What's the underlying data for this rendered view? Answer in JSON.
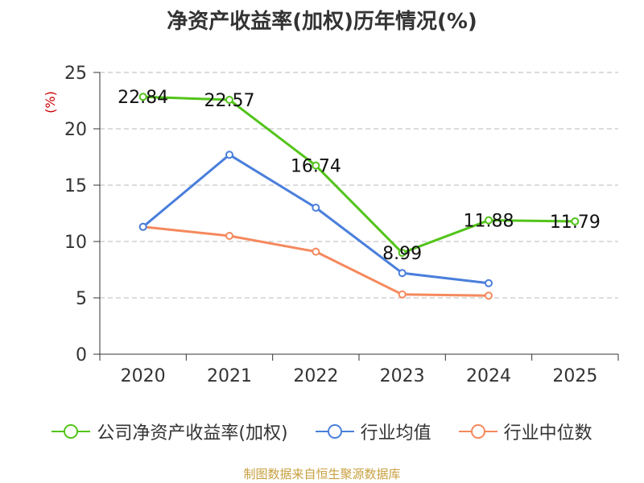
{
  "colors": {
    "company": "#52c41a",
    "industry_avg": "#4a7fdb",
    "industry_median": "#f5895d",
    "ylabel": "#cc0000",
    "source": "#c8a040"
  },
  "legend": {
    "company": "公司净资产收益率(加权)",
    "industry_avg": "行业均值",
    "industry_median": "行业中位数"
  },
  "source_text": "制图数据来自恒生聚源数据库",
  "chart_data": {
    "type": "line",
    "title": "净资产收益率(加权)历年情况(%)",
    "xlabel": "",
    "ylabel": "(%)",
    "categories": [
      "2020",
      "2021",
      "2022",
      "2023",
      "2024",
      "2025"
    ],
    "ylim": [
      0,
      25
    ],
    "yticks": [
      0,
      5,
      10,
      15,
      20,
      25
    ],
    "grid": true,
    "legend_position": "bottom",
    "series": [
      {
        "name": "公司净资产收益率(加权)",
        "key": "company",
        "values": [
          22.84,
          22.57,
          16.74,
          8.99,
          11.88,
          11.79
        ],
        "labels": [
          "22.84",
          "22.57",
          "16.74",
          "8.99",
          "11.88",
          "11.79"
        ]
      },
      {
        "name": "行业均值",
        "key": "industry_avg",
        "values": [
          11.3,
          17.7,
          13.0,
          7.2,
          6.3,
          null
        ]
      },
      {
        "name": "行业中位数",
        "key": "industry_median",
        "values": [
          11.3,
          10.5,
          9.1,
          5.3,
          5.2,
          null
        ]
      }
    ]
  }
}
